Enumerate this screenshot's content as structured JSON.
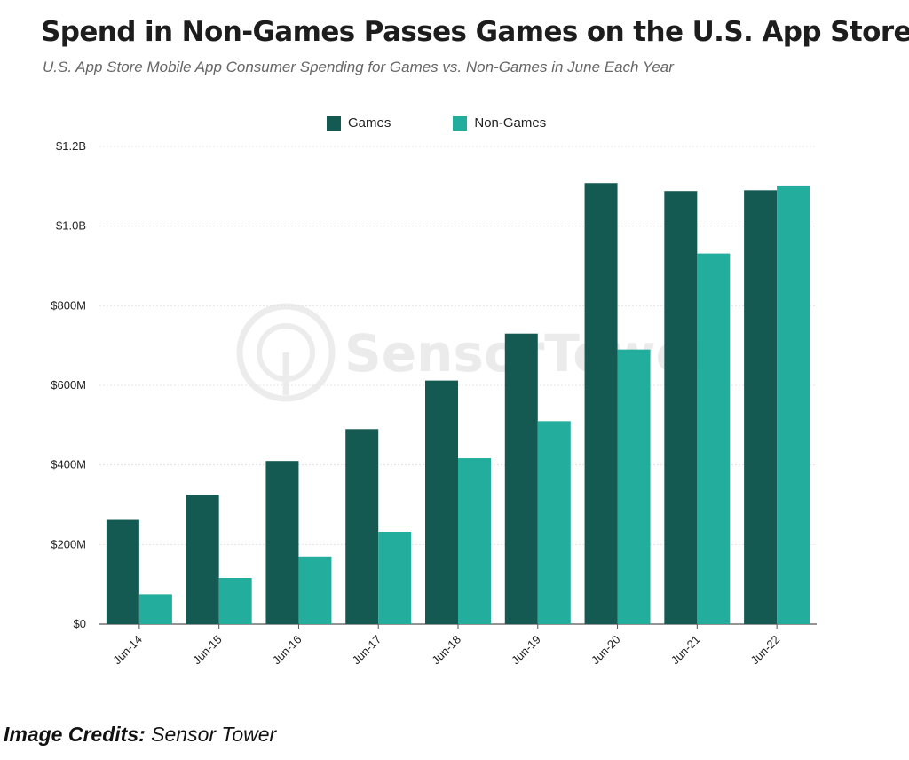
{
  "title": "Spend in Non-Games Passes Games on the U.S. App Store",
  "subtitle": "U.S. App Store Mobile App Consumer Spending for Games vs. Non-Games in June Each Year",
  "credits": {
    "label": "Image Credits:",
    "source": "Sensor Tower"
  },
  "watermark": "SensorTower",
  "colors": {
    "games": "#145a52",
    "non_games": "#22ad9c",
    "grid": "#e4e4e4",
    "axis": "#555555"
  },
  "chart_data": {
    "type": "bar",
    "categories": [
      "Jun-14",
      "Jun-15",
      "Jun-16",
      "Jun-17",
      "Jun-18",
      "Jun-19",
      "Jun-20",
      "Jun-21",
      "Jun-22"
    ],
    "series": [
      {
        "name": "Games",
        "values": [
          262000000,
          325000000,
          410000000,
          490000000,
          612000000,
          730000000,
          1108000000,
          1088000000,
          1090000000
        ]
      },
      {
        "name": "Non-Games",
        "values": [
          75000000,
          116000000,
          170000000,
          232000000,
          417000000,
          510000000,
          690000000,
          931000000,
          1102000000
        ]
      }
    ],
    "yticks": [
      "$0",
      "$200M",
      "$400M",
      "$600M",
      "$800M",
      "$1.0B",
      "$1.2B"
    ],
    "ytick_values": [
      0,
      200000000,
      400000000,
      600000000,
      800000000,
      1000000000,
      1200000000
    ],
    "ylim": [
      0,
      1200000000
    ],
    "grid": true,
    "legend_position": "top"
  }
}
